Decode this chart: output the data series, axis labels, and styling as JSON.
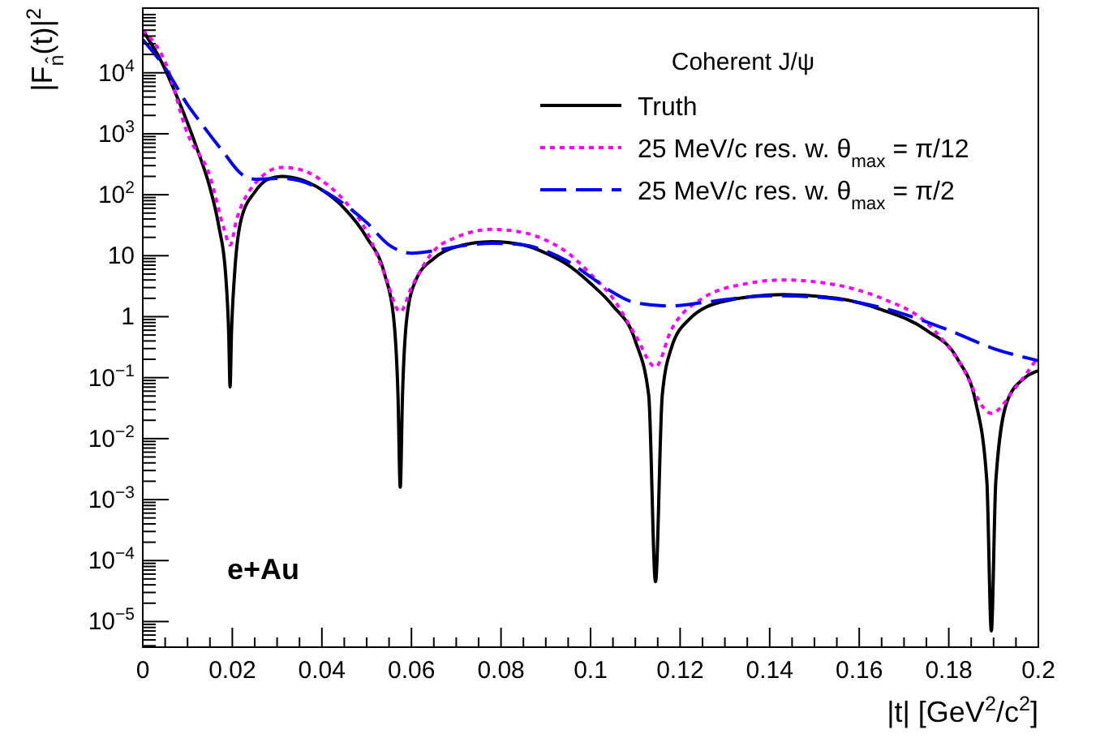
{
  "chart_data": {
    "type": "line",
    "xlabel": "|t| [GeV$^{2}$/c$^{2}$]",
    "ylabel": "|F$_{n̂}$(t)|$^{2}$",
    "legend_title": "Coherent J/ψ",
    "legend": "top right",
    "log": "y",
    "grid": false,
    "annotations": [
      "e+Au"
    ],
    "xlim": [
      0,
      0.2
    ],
    "xticks": [
      0,
      0.02,
      0.04,
      0.06,
      0.08,
      0.1,
      0.12,
      0.14,
      0.16,
      0.18,
      0.2
    ],
    "ylim": [
      3.8e-06,
      115000.0
    ],
    "yticks": [
      {
        "value": 1e-05,
        "label": "10$^{−5}$"
      },
      {
        "value": 0.0001,
        "label": "10$^{−4}$"
      },
      {
        "value": 0.001,
        "label": "10$^{−3}$"
      },
      {
        "value": 0.01,
        "label": "10$^{−2}$"
      },
      {
        "value": 0.1,
        "label": "10$^{−1}$"
      },
      1,
      10,
      {
        "value": 100,
        "label": "10$^{2}$"
      },
      {
        "value": 1000,
        "label": "10$^{3}$"
      },
      {
        "value": 10000,
        "label": "10$^{4}$"
      }
    ],
    "series": [
      {
        "name": "Truth",
        "color": "#000000",
        "line_style": "solid",
        "x": [
          0,
          0.004,
          0.008,
          0.012,
          0.015,
          0.017,
          0.0185,
          0.0192,
          0.0195,
          0.0198,
          0.0205,
          0.022,
          0.025,
          0.028,
          0.031,
          0.035,
          0.04,
          0.045,
          0.05,
          0.054,
          0.056,
          0.057,
          0.0575,
          0.058,
          0.059,
          0.061,
          0.065,
          0.07,
          0.078,
          0.085,
          0.09,
          0.095,
          0.1,
          0.105,
          0.11,
          0.113,
          0.1145,
          0.116,
          0.118,
          0.122,
          0.13,
          0.143,
          0.155,
          0.165,
          0.175,
          0.182,
          0.186,
          0.1885,
          0.1895,
          0.1905,
          0.193,
          0.197,
          0.2
        ],
        "values": [
          50000,
          16000,
          3500,
          600,
          130,
          30,
          5,
          0.5,
          0.07,
          0.5,
          5,
          40,
          110,
          180,
          200,
          180,
          120,
          60,
          20,
          5,
          1,
          0.05,
          0.0016,
          0.05,
          1,
          4,
          9,
          14,
          17,
          15,
          11,
          7,
          3.5,
          1.5,
          0.4,
          0.05,
          4.5e-05,
          0.05,
          0.3,
          0.9,
          1.8,
          2.3,
          2,
          1.3,
          0.6,
          0.2,
          0.04,
          0.002,
          7e-06,
          0.002,
          0.04,
          0.1,
          0.13
        ]
      },
      {
        "name": "25 MeV/c res. w. θ$_{max}$ = π/12",
        "color": "#ff00ff",
        "line_style": "dotted",
        "x": [
          0,
          0.005,
          0.01,
          0.015,
          0.018,
          0.0195,
          0.021,
          0.025,
          0.031,
          0.035,
          0.04,
          0.045,
          0.05,
          0.054,
          0.0575,
          0.06,
          0.065,
          0.07,
          0.078,
          0.085,
          0.09,
          0.095,
          0.1,
          0.105,
          0.11,
          0.1145,
          0.118,
          0.125,
          0.135,
          0.143,
          0.155,
          0.165,
          0.175,
          0.182,
          0.1895,
          0.195,
          0.2
        ],
        "values": [
          50000,
          15000,
          1000,
          200,
          30,
          15,
          40,
          150,
          280,
          260,
          170,
          80,
          25,
          5,
          1.2,
          3,
          12,
          20,
          27,
          24,
          18,
          11,
          5,
          2,
          0.5,
          0.15,
          0.6,
          2,
          3.5,
          4,
          3.3,
          2,
          0.8,
          0.2,
          0.026,
          0.07,
          0.22
        ]
      },
      {
        "name": "25 MeV/c res. w. θ$_{max}$ = π/2",
        "color": "#0000ff",
        "line_style": "dashed",
        "x": [
          0,
          0.005,
          0.01,
          0.013,
          0.018,
          0.022,
          0.025,
          0.031,
          0.035,
          0.04,
          0.045,
          0.05,
          0.055,
          0.06,
          0.065,
          0.07,
          0.078,
          0.085,
          0.09,
          0.095,
          0.1,
          0.105,
          0.11,
          0.118,
          0.125,
          0.13,
          0.14,
          0.15,
          0.16,
          0.17,
          0.18,
          0.19,
          0.2
        ],
        "values": [
          35000,
          12000,
          3000,
          1500,
          500,
          220,
          180,
          185,
          170,
          120,
          70,
          35,
          15,
          11,
          12,
          14,
          16,
          15,
          12,
          8,
          4.5,
          2.5,
          1.7,
          1.5,
          1.7,
          1.9,
          2.2,
          2.1,
          1.7,
          1.1,
          0.6,
          0.3,
          0.19
        ]
      }
    ]
  }
}
